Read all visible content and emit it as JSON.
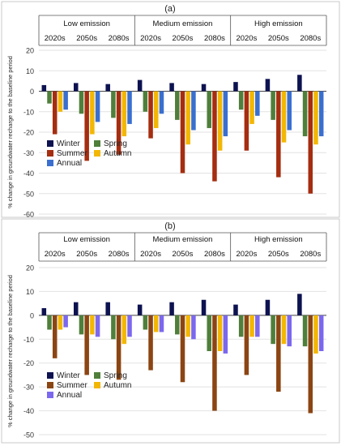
{
  "chart_data": [
    {
      "type": "bar",
      "title": "(a)",
      "ylabel": "% change in groundwater recharge to the baseline period",
      "ylim": [
        -60,
        20
      ],
      "yticks": [
        20,
        10,
        0,
        -10,
        -20,
        -30,
        -40,
        -50,
        -60
      ],
      "grid": true,
      "legend_position": "lower-left",
      "groups": [
        "Low emission",
        "Medium emission",
        "High emission"
      ],
      "periods": [
        "2020s",
        "2050s",
        "2080s"
      ],
      "series": [
        {
          "name": "Winter",
          "color": "#0d1250",
          "values": [
            3,
            4,
            3.5,
            5.5,
            4,
            3.5,
            4.5,
            6,
            8
          ]
        },
        {
          "name": "Spring",
          "color": "#4f7f3a",
          "values": [
            -6,
            -11,
            -13,
            -10,
            -14,
            -18,
            -9,
            -14,
            -22
          ]
        },
        {
          "name": "Summer",
          "color": "#a52d10",
          "values": [
            -21,
            -34,
            -31,
            -23,
            -40,
            -44,
            -29,
            -42,
            -50
          ]
        },
        {
          "name": "Autumn",
          "color": "#f2b705",
          "values": [
            -10,
            -21,
            -22,
            -18,
            -26,
            -29,
            -16,
            -25,
            -26
          ]
        },
        {
          "name": "Annual",
          "color": "#3a6fd0",
          "values": [
            -9,
            -15,
            -16,
            -11,
            -19,
            -22,
            -12,
            -19,
            -22
          ]
        }
      ]
    },
    {
      "type": "bar",
      "title": "(b)",
      "ylabel": "% change in groundwater recharge to the baseline period",
      "ylim": [
        -50,
        20
      ],
      "yticks": [
        20,
        10,
        0,
        -10,
        -20,
        -30,
        -40,
        -50
      ],
      "grid": true,
      "legend_position": "lower-left",
      "groups": [
        "Low emission",
        "Medium emission",
        "High emission"
      ],
      "periods": [
        "2020s",
        "2050s",
        "2080s"
      ],
      "series": [
        {
          "name": "Winter",
          "color": "#0d1250",
          "values": [
            3,
            5.5,
            5.5,
            4.5,
            5.5,
            6.5,
            4.5,
            6.5,
            9
          ]
        },
        {
          "name": "Spring",
          "color": "#4f7f3a",
          "values": [
            -6,
            -8,
            -10,
            -6,
            -8,
            -15,
            -9,
            -12,
            -13
          ]
        },
        {
          "name": "Summer",
          "color": "#8b4513",
          "values": [
            -18,
            -25,
            -27,
            -23,
            -28,
            -40,
            -25,
            -32,
            -41
          ]
        },
        {
          "name": "Autumn",
          "color": "#f2b705",
          "values": [
            -6,
            -8,
            -12,
            -7,
            -9,
            -15,
            -9,
            -12,
            -16
          ]
        },
        {
          "name": "Annual",
          "color": "#7b68ee",
          "values": [
            -5,
            -9,
            -9,
            -7,
            -10,
            -16,
            -9,
            -13,
            -15
          ]
        }
      ]
    }
  ]
}
